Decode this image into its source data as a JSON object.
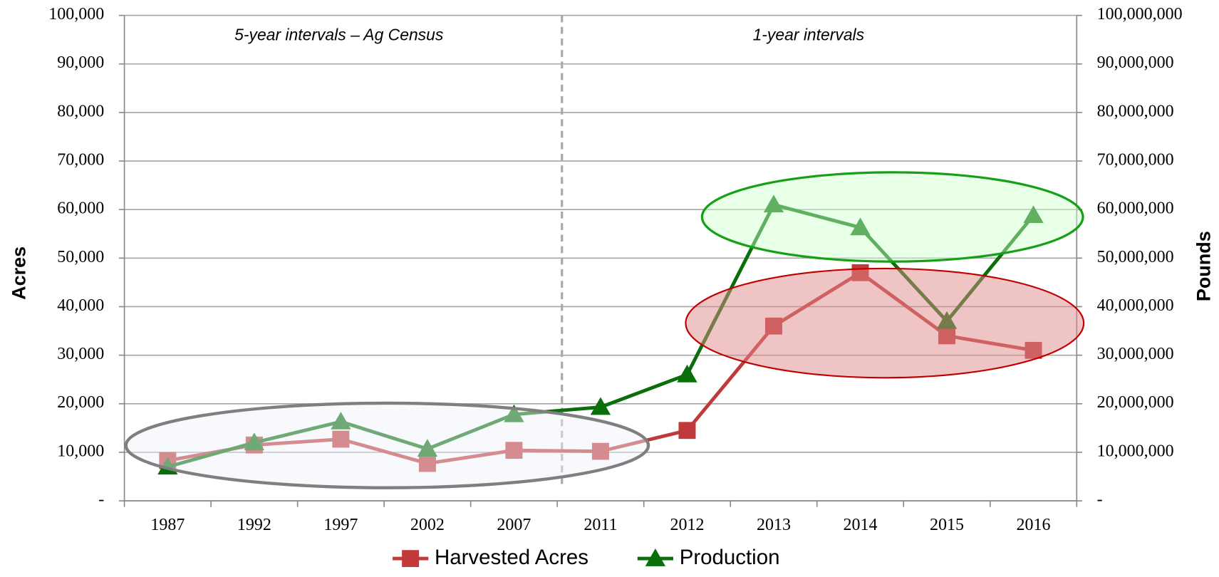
{
  "chart_data": {
    "type": "line",
    "categories": [
      "1987",
      "1992",
      "1997",
      "2002",
      "2007",
      "2011",
      "2012",
      "2013",
      "2014",
      "2015",
      "2016"
    ],
    "series": [
      {
        "name": "Harvested Acres",
        "color": "#c0393b",
        "marker": "square",
        "values": [
          8300,
          11500,
          12700,
          7700,
          10400,
          10200,
          14500,
          36000,
          47000,
          34000,
          31000
        ]
      },
      {
        "name": "Production",
        "color": "#0a6e0a",
        "marker": "triangle",
        "axis": "y2",
        "values": [
          7000000,
          12000000,
          16300000,
          10700000,
          17800000,
          19300000,
          26000000,
          61000000,
          56300000,
          37000000,
          58800000
        ]
      }
    ],
    "ylabel": "Acres",
    "y2label": "Pounds",
    "ylim": [
      0,
      100000
    ],
    "yticks": [
      {
        "value": 0,
        "label": "-"
      },
      {
        "value": 10000,
        "label": "10,000"
      },
      {
        "value": 20000,
        "label": "20,000"
      },
      {
        "value": 30000,
        "label": "30,000"
      },
      {
        "value": 40000,
        "label": "40,000"
      },
      {
        "value": 50000,
        "label": "50,000"
      },
      {
        "value": 60000,
        "label": "60,000"
      },
      {
        "value": 70000,
        "label": "70,000"
      },
      {
        "value": 80000,
        "label": "80,000"
      },
      {
        "value": 90000,
        "label": "90,000"
      },
      {
        "value": 100000,
        "label": "100,000"
      }
    ],
    "y2lim": [
      0,
      100000000
    ],
    "y2ticks": [
      {
        "value": 0,
        "label": "-"
      },
      {
        "value": 10000000,
        "label": "10,000,000"
      },
      {
        "value": 20000000,
        "label": "20,000,000"
      },
      {
        "value": 30000000,
        "label": "30,000,000"
      },
      {
        "value": 40000000,
        "label": "40,000,000"
      },
      {
        "value": 50000000,
        "label": "50,000,000"
      },
      {
        "value": 60000000,
        "label": "60,000,000"
      },
      {
        "value": 70000000,
        "label": "70,000,000"
      },
      {
        "value": 80000000,
        "label": "80,000,000"
      },
      {
        "value": 90000000,
        "label": "90,000,000"
      },
      {
        "value": 100000000,
        "label": "100,000,000"
      }
    ],
    "annotations": [
      "5-year intervals – Ag Census",
      "1-year intervals"
    ],
    "grid": true,
    "legend": "bottom"
  }
}
